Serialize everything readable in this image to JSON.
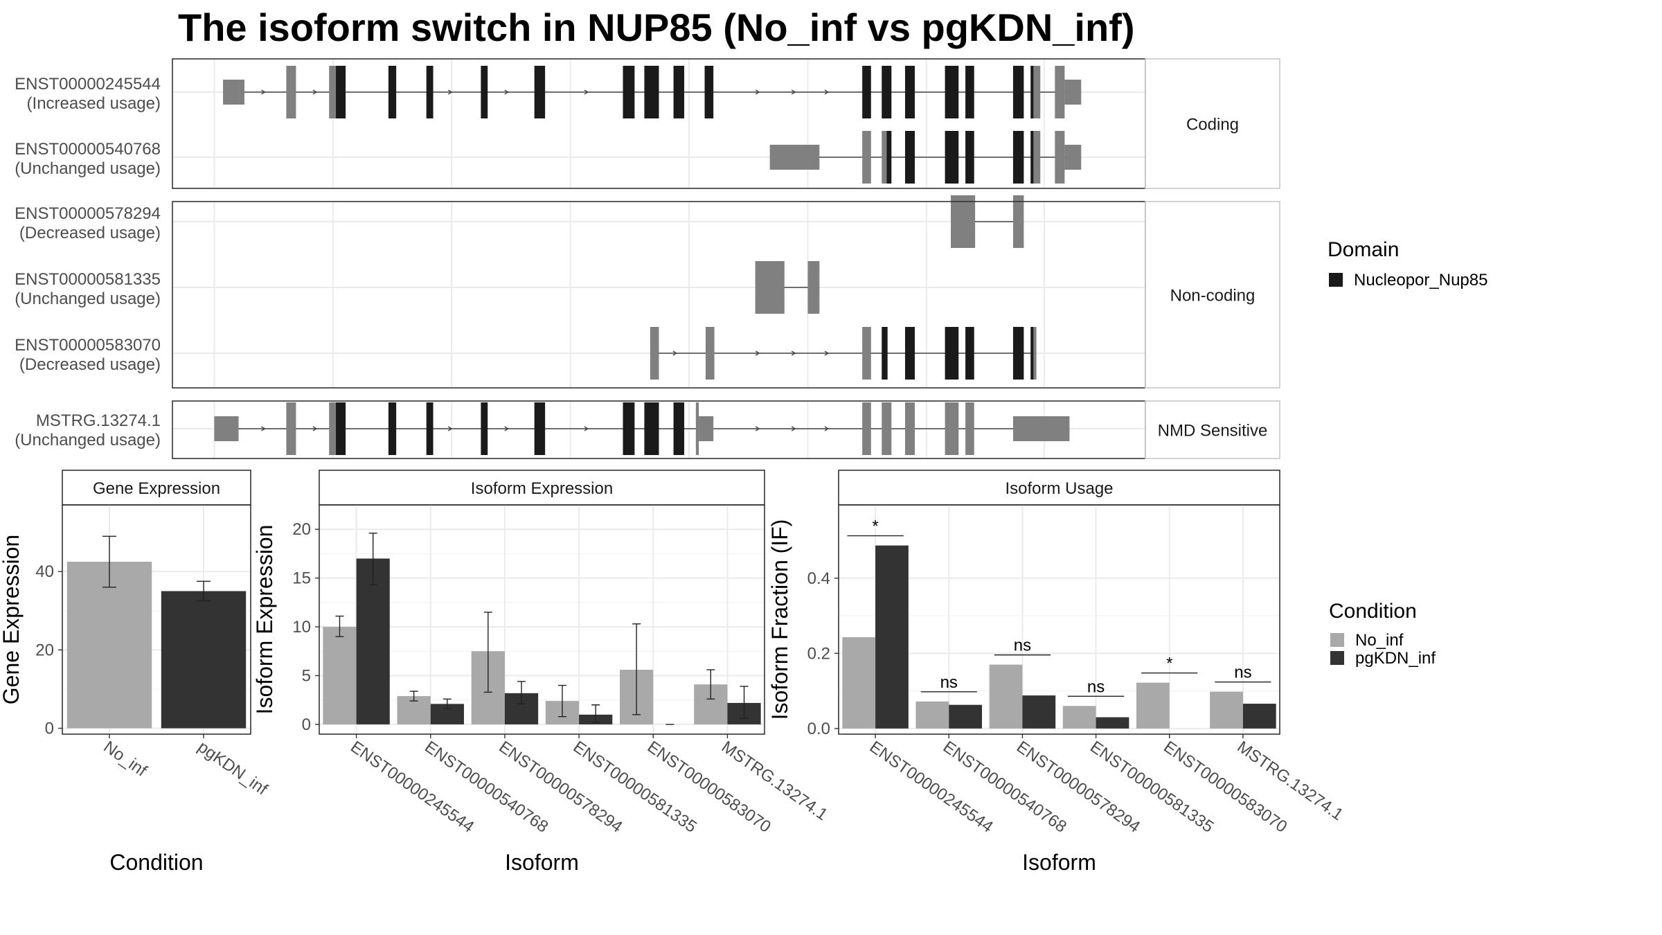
{
  "title": "The isoform switch in NUP85 (No_inf vs pgKDN_inf)",
  "colors": {
    "no_inf": "#a9a9a9",
    "pgkdn_inf": "#333333",
    "domain": "#1a1a1a",
    "exon": "#808080",
    "grid": "#ebebeb"
  },
  "structure": {
    "panels": [
      {
        "label": "Coding",
        "isoforms": [
          {
            "id": "ENST00000245544",
            "usage": "(Increased usage)",
            "exons": [
              [
                0.052,
                0.068,
                "u"
              ],
              [
                0.068,
                0.074,
                "u"
              ],
              [
                0.117,
                0.127,
                "c"
              ],
              [
                0.161,
                0.168,
                "c"
              ],
              [
                0.168,
                0.178,
                "d"
              ],
              [
                0.222,
                0.23,
                "d"
              ],
              [
                0.261,
                0.268,
                "d"
              ],
              [
                0.317,
                0.324,
                "d"
              ],
              [
                0.372,
                0.383,
                "d"
              ],
              [
                0.463,
                0.475,
                "d"
              ],
              [
                0.485,
                0.5,
                "d"
              ],
              [
                0.515,
                0.526,
                "d"
              ],
              [
                0.547,
                0.556,
                "d"
              ],
              [
                0.709,
                0.718,
                "d"
              ],
              [
                0.729,
                0.739,
                "d"
              ],
              [
                0.753,
                0.763,
                "d"
              ],
              [
                0.794,
                0.808,
                "d"
              ],
              [
                0.815,
                0.824,
                "d"
              ],
              [
                0.864,
                0.875,
                "d"
              ],
              [
                0.882,
                0.885,
                "d"
              ],
              [
                0.885,
                0.892,
                "c"
              ],
              [
                0.907,
                0.917,
                "c"
              ],
              [
                0.917,
                0.934,
                "u"
              ]
            ],
            "arrows": [
              0.095,
              0.148,
              0.287,
              0.345,
              0.427,
              0.603,
              0.64,
              0.674
            ]
          },
          {
            "id": "ENST00000540768",
            "usage": "(Unchanged usage)",
            "exons": [
              [
                0.614,
                0.665,
                "u"
              ],
              [
                0.709,
                0.718,
                "c"
              ],
              [
                0.729,
                0.734,
                "c"
              ],
              [
                0.734,
                0.739,
                "d"
              ],
              [
                0.753,
                0.763,
                "d"
              ],
              [
                0.794,
                0.808,
                "d"
              ],
              [
                0.815,
                0.824,
                "d"
              ],
              [
                0.864,
                0.875,
                "d"
              ],
              [
                0.882,
                0.885,
                "d"
              ],
              [
                0.885,
                0.892,
                "c"
              ],
              [
                0.907,
                0.917,
                "c"
              ],
              [
                0.917,
                0.934,
                "u"
              ]
            ],
            "arrows": []
          }
        ]
      },
      {
        "label": "Non-coding",
        "isoforms": [
          {
            "id": "ENST00000578294",
            "usage": "(Decreased usage)",
            "exons": [
              [
                0.8,
                0.825,
                "c"
              ],
              [
                0.864,
                0.875,
                "c"
              ]
            ],
            "arrows": []
          },
          {
            "id": "ENST00000581335",
            "usage": "(Unchanged usage)",
            "exons": [
              [
                0.599,
                0.629,
                "c"
              ],
              [
                0.653,
                0.665,
                "c"
              ]
            ],
            "arrows": []
          },
          {
            "id": "ENST00000583070",
            "usage": "(Decreased usage)",
            "exons": [
              [
                0.491,
                0.5,
                "c"
              ],
              [
                0.548,
                0.557,
                "c"
              ],
              [
                0.709,
                0.718,
                "c"
              ],
              [
                0.729,
                0.735,
                "d"
              ],
              [
                0.753,
                0.763,
                "d"
              ],
              [
                0.794,
                0.808,
                "d"
              ],
              [
                0.815,
                0.824,
                "d"
              ],
              [
                0.864,
                0.875,
                "d"
              ],
              [
                0.882,
                0.885,
                "d"
              ],
              [
                0.885,
                0.888,
                "c"
              ]
            ],
            "arrows": [
              0.518,
              0.603,
              0.64,
              0.674
            ]
          }
        ]
      },
      {
        "label": "NMD Sensitive",
        "isoforms": [
          {
            "id": "MSTRG.13274.1",
            "usage": "(Unchanged usage)",
            "exons": [
              [
                0.043,
                0.063,
                "u"
              ],
              [
                0.063,
                0.068,
                "u"
              ],
              [
                0.117,
                0.127,
                "c"
              ],
              [
                0.161,
                0.168,
                "c"
              ],
              [
                0.168,
                0.178,
                "d"
              ],
              [
                0.222,
                0.23,
                "d"
              ],
              [
                0.261,
                0.268,
                "d"
              ],
              [
                0.317,
                0.324,
                "d"
              ],
              [
                0.372,
                0.383,
                "d"
              ],
              [
                0.463,
                0.475,
                "d"
              ],
              [
                0.485,
                0.5,
                "d"
              ],
              [
                0.515,
                0.526,
                "d"
              ],
              [
                0.538,
                0.541,
                "c"
              ],
              [
                0.541,
                0.556,
                "u"
              ],
              [
                0.709,
                0.718,
                "c"
              ],
              [
                0.729,
                0.739,
                "c"
              ],
              [
                0.753,
                0.763,
                "c"
              ],
              [
                0.794,
                0.808,
                "c"
              ],
              [
                0.815,
                0.824,
                "c"
              ],
              [
                0.864,
                0.922,
                "u"
              ]
            ],
            "arrows": [
              0.095,
              0.148,
              0.287,
              0.345,
              0.427,
              0.603,
              0.64,
              0.674
            ]
          }
        ]
      }
    ]
  },
  "domain_legend": {
    "title": "Domain",
    "items": [
      "Nucleopor_Nup85"
    ]
  },
  "condition_legend": {
    "title": "Condition",
    "items": [
      "No_inf",
      "pgKDN_inf"
    ]
  },
  "chart_data": [
    {
      "type": "bar",
      "title": "Gene Expression",
      "xlabel": "Condition",
      "ylabel": "Gene Expression",
      "categories": [
        "No_inf",
        "pgKDN_inf"
      ],
      "values": [
        42.5,
        35.0
      ],
      "error": [
        [
          36.0,
          49.0
        ],
        [
          32.5,
          37.5
        ]
      ],
      "ylim": [
        -1.5,
        57
      ],
      "yticks": [
        0,
        20,
        40
      ]
    },
    {
      "type": "bar",
      "title": "Isoform Expression",
      "xlabel": "Isoform",
      "ylabel": "Isoform Expression",
      "categories": [
        "ENST00000245544",
        "ENST00000540768",
        "ENST00000578294",
        "ENST00000581335",
        "ENST00000583070",
        "MSTRG.13274.1"
      ],
      "series": [
        {
          "name": "No_inf",
          "values": [
            10.0,
            2.9,
            7.5,
            2.4,
            5.6,
            4.1
          ],
          "error": [
            [
              9.0,
              11.1
            ],
            [
              2.4,
              3.4
            ],
            [
              3.3,
              11.5
            ],
            [
              0.8,
              4.0
            ],
            [
              1.0,
              10.3
            ],
            [
              2.6,
              5.6
            ]
          ]
        },
        {
          "name": "pgKDN_inf",
          "values": [
            17.0,
            2.1,
            3.2,
            1.0,
            0.0,
            2.2
          ],
          "error": [
            [
              14.3,
              19.6
            ],
            [
              1.6,
              2.6
            ],
            [
              2.1,
              4.4
            ],
            [
              0.2,
              2.0
            ],
            [
              0.0,
              0.0
            ],
            [
              0.6,
              3.9
            ]
          ]
        }
      ],
      "ylim": [
        -1.0,
        22.5
      ],
      "yticks": [
        0,
        5,
        10,
        15,
        20
      ]
    },
    {
      "type": "bar",
      "title": "Isoform Usage",
      "xlabel": "Isoform",
      "ylabel": "Isoform Fraction (IF)",
      "categories": [
        "ENST00000245544",
        "ENST00000540768",
        "ENST00000578294",
        "ENST00000581335",
        "ENST00000583070",
        "MSTRG.13274.1"
      ],
      "series": [
        {
          "name": "No_inf",
          "values": [
            0.243,
            0.072,
            0.17,
            0.06,
            0.122,
            0.098
          ]
        },
        {
          "name": "pgKDN_inf",
          "values": [
            0.487,
            0.063,
            0.088,
            0.03,
            0.0,
            0.066
          ]
        }
      ],
      "significance": [
        "*",
        "ns",
        "ns",
        "ns",
        "*",
        "ns"
      ],
      "ylim": [
        -0.015,
        0.595
      ],
      "yticks": [
        0.0,
        0.2,
        0.4
      ],
      "ytick_labels": [
        "0.0",
        "0.2",
        "0.4"
      ]
    }
  ]
}
